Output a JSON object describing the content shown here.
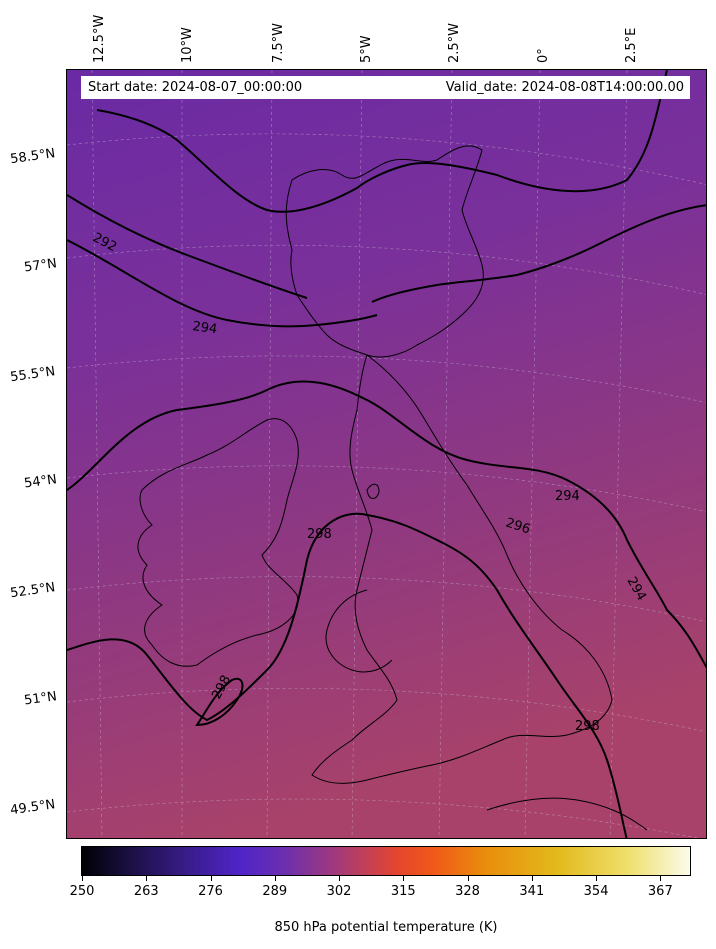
{
  "header": {
    "start_date": "Start date: 2024-08-07_00:00:00",
    "valid_date": "Valid_date: 2024-08-08T14:00:00.00"
  },
  "lon_ticks": [
    "12.5°W",
    "10°W",
    "7.5°W",
    "5°W",
    "2.5°W",
    "0°",
    "2.5°E"
  ],
  "lat_ticks": [
    "58.5°N",
    "57°N",
    "55.5°N",
    "54°N",
    "52.5°N",
    "51°N",
    "49.5°N"
  ],
  "contours": {
    "labels": [
      "292",
      "294",
      "296",
      "298",
      "294",
      "294",
      "298",
      "298"
    ]
  },
  "colorbar": {
    "label": "850 hPa potential temperature (K)",
    "ticks": [
      "250",
      "263",
      "276",
      "289",
      "302",
      "315",
      "328",
      "341",
      "354",
      "367"
    ],
    "colormap": "CMRmap",
    "range": [
      250,
      373
    ]
  },
  "colors": {
    "field_north": "#6f2fa0",
    "field_south": "#a0406a",
    "coastline": "#000000"
  }
}
